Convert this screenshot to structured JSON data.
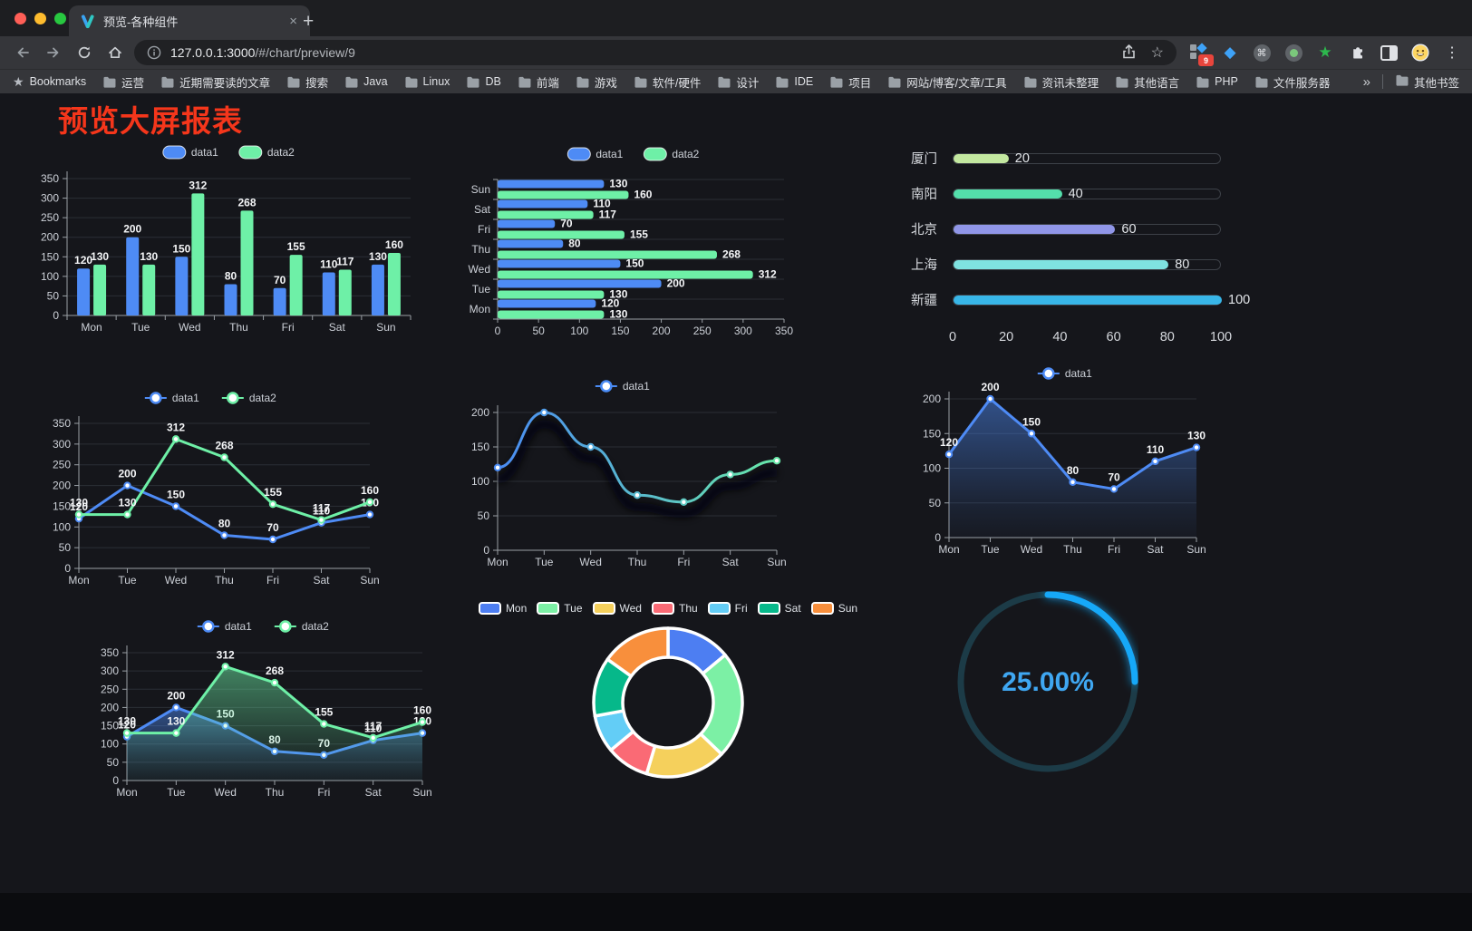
{
  "browser": {
    "tab_title": "预览-各种组件",
    "url_host": "127.0.0.1:3000",
    "url_path": "/#/chart/preview/9",
    "extension_badge": "9",
    "bookmarks_label": "Bookmarks",
    "bookmark_folders": [
      "运营",
      "近期需要读的文章",
      "搜索",
      "Java",
      "Linux",
      "DB",
      "前端",
      "游戏",
      "软件/硬件",
      "设计",
      "IDE",
      "项目",
      "网站/博客/文章/工具",
      "资讯未整理",
      "其他语言",
      "PHP",
      "文件服务器"
    ],
    "overflow_chevron": "»",
    "other_bookmarks": "其他书签",
    "traffic_lights": [
      "#ff5f57",
      "#febc2e",
      "#28c840"
    ]
  },
  "page": {
    "title": "预览大屏报表",
    "title_color": "#f5361b",
    "background": "#15161b"
  },
  "chart_data": [
    {
      "id": "bar-vertical",
      "type": "bar",
      "categories": [
        "Mon",
        "Tue",
        "Wed",
        "Thu",
        "Fri",
        "Sat",
        "Sun"
      ],
      "series": [
        {
          "name": "data1",
          "color": "#4e8bf5",
          "values": [
            120,
            200,
            150,
            80,
            70,
            110,
            130
          ]
        },
        {
          "name": "data2",
          "color": "#6ef0a7",
          "values": [
            130,
            130,
            312,
            268,
            155,
            117,
            160
          ]
        }
      ],
      "ylim": [
        0,
        350
      ],
      "ytick": 50,
      "legend_position": "top",
      "grid": true
    },
    {
      "id": "bar-horizontal",
      "type": "bar-horizontal",
      "categories": [
        "Mon",
        "Tue",
        "Wed",
        "Thu",
        "Fri",
        "Sat",
        "Sun"
      ],
      "series": [
        {
          "name": "data1",
          "color": "#4e8bf5",
          "values": [
            120,
            200,
            150,
            80,
            70,
            110,
            130
          ]
        },
        {
          "name": "data2",
          "color": "#6ef0a7",
          "values": [
            130,
            130,
            312,
            268,
            155,
            117,
            160
          ]
        }
      ],
      "xlim": [
        0,
        350
      ],
      "xtick": 50,
      "legend_position": "top"
    },
    {
      "id": "city-progress",
      "type": "progress-bars",
      "items": [
        {
          "label": "厦门",
          "value": 20,
          "color": "#c3e8a0"
        },
        {
          "label": "南阳",
          "value": 40,
          "color": "#54dfab"
        },
        {
          "label": "北京",
          "value": 60,
          "color": "#9096e8"
        },
        {
          "label": "上海",
          "value": 80,
          "color": "#7fe2e0"
        },
        {
          "label": "新疆",
          "value": 100,
          "color": "#38b6e8"
        }
      ],
      "xlim": [
        0,
        100
      ],
      "ticks": [
        0,
        20,
        40,
        60,
        80,
        100
      ]
    },
    {
      "id": "line-dual",
      "type": "line",
      "categories": [
        "Mon",
        "Tue",
        "Wed",
        "Thu",
        "Fri",
        "Sat",
        "Sun"
      ],
      "series": [
        {
          "name": "data1",
          "color": "#4e8bf5",
          "values": [
            120,
            200,
            150,
            80,
            70,
            110,
            130
          ]
        },
        {
          "name": "data2",
          "color": "#6ef0a7",
          "values": [
            130,
            130,
            312,
            268,
            155,
            117,
            160
          ]
        }
      ],
      "ylim": [
        0,
        350
      ],
      "ytick": 50,
      "show_labels": true,
      "legend_position": "top"
    },
    {
      "id": "line-gradient",
      "type": "line",
      "categories": [
        "Mon",
        "Tue",
        "Wed",
        "Thu",
        "Fri",
        "Sat",
        "Sun"
      ],
      "series": [
        {
          "name": "data1",
          "gradient": [
            "#4a8bf4",
            "#68e8a8"
          ],
          "values": [
            120,
            200,
            150,
            80,
            70,
            110,
            130
          ]
        }
      ],
      "ylim": [
        0,
        200
      ],
      "ytick": 50,
      "smooth": true,
      "shadow": true,
      "show_labels": false,
      "legend_position": "top"
    },
    {
      "id": "area-single",
      "type": "area",
      "categories": [
        "Mon",
        "Tue",
        "Wed",
        "Thu",
        "Fri",
        "Sat",
        "Sun"
      ],
      "series": [
        {
          "name": "data1",
          "color": "#4e8bf5",
          "values": [
            120,
            200,
            150,
            80,
            70,
            110,
            130
          ]
        }
      ],
      "ylim": [
        0,
        200
      ],
      "ytick": 50,
      "show_labels": true,
      "legend_position": "top"
    },
    {
      "id": "area-dual",
      "type": "area",
      "categories": [
        "Mon",
        "Tue",
        "Wed",
        "Thu",
        "Fri",
        "Sat",
        "Sun"
      ],
      "series": [
        {
          "name": "data1",
          "color": "#4e8bf5",
          "values": [
            120,
            200,
            150,
            80,
            70,
            110,
            130
          ]
        },
        {
          "name": "data2",
          "color": "#6ef0a7",
          "values": [
            130,
            130,
            312,
            268,
            155,
            117,
            160
          ]
        }
      ],
      "ylim": [
        0,
        350
      ],
      "ytick": 50,
      "show_labels": true,
      "legend_position": "top"
    },
    {
      "id": "week-donut",
      "type": "pie",
      "labels": [
        "Mon",
        "Tue",
        "Wed",
        "Thu",
        "Fri",
        "Sat",
        "Sun"
      ],
      "values": [
        120,
        200,
        150,
        80,
        70,
        110,
        130
      ],
      "colors": [
        "#4d7ef2",
        "#7cf0a5",
        "#f5d05c",
        "#fa6a75",
        "#63cdf6",
        "#06b88a",
        "#f88f3c"
      ],
      "inner_radius_ratio": 0.61,
      "legend_position": "top"
    },
    {
      "id": "percent-gauge",
      "type": "gauge",
      "value": 25,
      "label": "25.00%",
      "color": "#18a8f8",
      "track_color": "#1c3b47",
      "text_color": "#3fa7f2"
    }
  ]
}
